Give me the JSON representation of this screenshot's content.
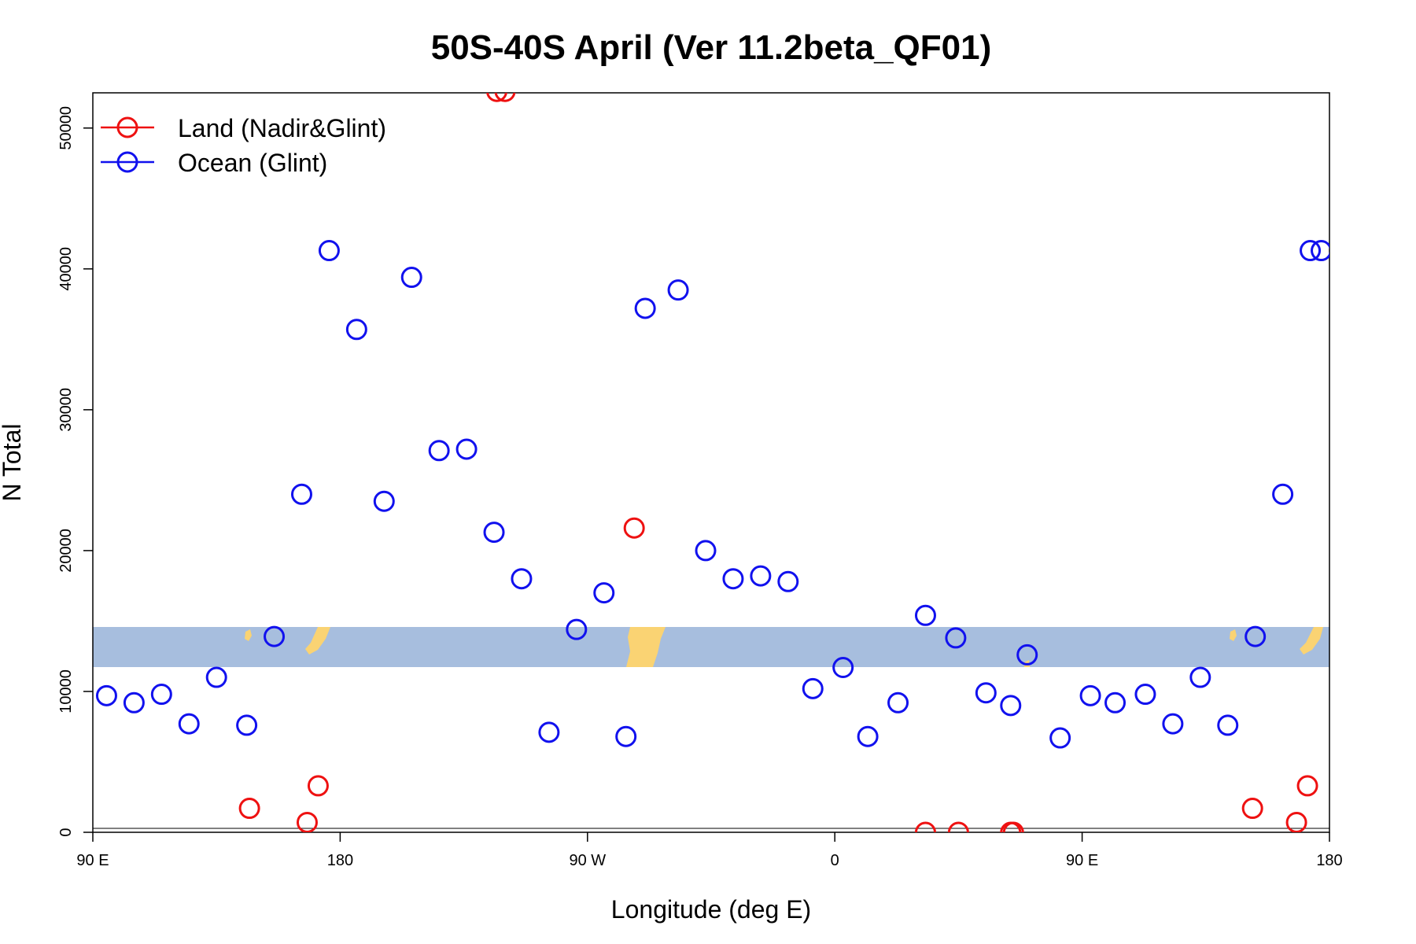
{
  "chart_data": {
    "type": "scatter",
    "title": "50S-40S April (Ver 11.2beta_QF01)",
    "xlabel": "Longitude (deg E)",
    "ylabel": "N Total",
    "xlim": [
      90,
      540
    ],
    "ylim": [
      0,
      52500
    ],
    "x_ticks": [
      {
        "value": 90,
        "label": "90 E"
      },
      {
        "value": 180,
        "label": "180"
      },
      {
        "value": 270,
        "label": "90 W"
      },
      {
        "value": 360,
        "label": "0"
      },
      {
        "value": 450,
        "label": "90 E"
      },
      {
        "value": 540,
        "label": "180"
      }
    ],
    "y_ticks": [
      {
        "value": 0,
        "label": "0"
      },
      {
        "value": 10000,
        "label": "10000"
      },
      {
        "value": 20000,
        "label": "20000"
      },
      {
        "value": 30000,
        "label": "30000"
      },
      {
        "value": 40000,
        "label": "40000"
      },
      {
        "value": 50000,
        "label": "50000"
      }
    ],
    "grid": false,
    "legend_position": "top-left",
    "background_map": {
      "lat_range": [
        -50,
        -40
      ],
      "ocean_color": "#a7bede",
      "land_color": "#fad373"
    },
    "series": [
      {
        "name": "Land (Nadir&Glint)",
        "color": "#ee1111",
        "x": [
          147,
          168,
          172,
          287,
          393,
          405,
          424,
          425,
          237,
          240,
          512,
          528,
          532
        ],
        "y": [
          1700,
          700,
          3300,
          21600,
          0,
          0,
          0,
          0,
          52600,
          52600,
          1700,
          700,
          3300
        ]
      },
      {
        "name": "Ocean (Glint)",
        "color": "#1111ee",
        "x": [
          95,
          105,
          115,
          125,
          135,
          146,
          156,
          166,
          176,
          186,
          196,
          206,
          216,
          226,
          236,
          246,
          256,
          266,
          276,
          284,
          291,
          303,
          313,
          323,
          333,
          343,
          352,
          363,
          372,
          383,
          393,
          404,
          415,
          424,
          430,
          442,
          453,
          462,
          473,
          483,
          493,
          503,
          513,
          523,
          533,
          537
        ],
        "y": [
          9700,
          9200,
          9800,
          7700,
          11000,
          7600,
          13900,
          24000,
          41300,
          35700,
          23500,
          39400,
          27100,
          27200,
          21300,
          18000,
          7100,
          14400,
          17000,
          6800,
          37200,
          38500,
          20000,
          18000,
          18200,
          17800,
          10200,
          11700,
          6800,
          9200,
          15400,
          13800,
          9900,
          9000,
          12600,
          6700,
          9700,
          9200,
          9800,
          7700,
          11000,
          7600,
          13900,
          24000,
          41300,
          41300
        ]
      }
    ]
  }
}
